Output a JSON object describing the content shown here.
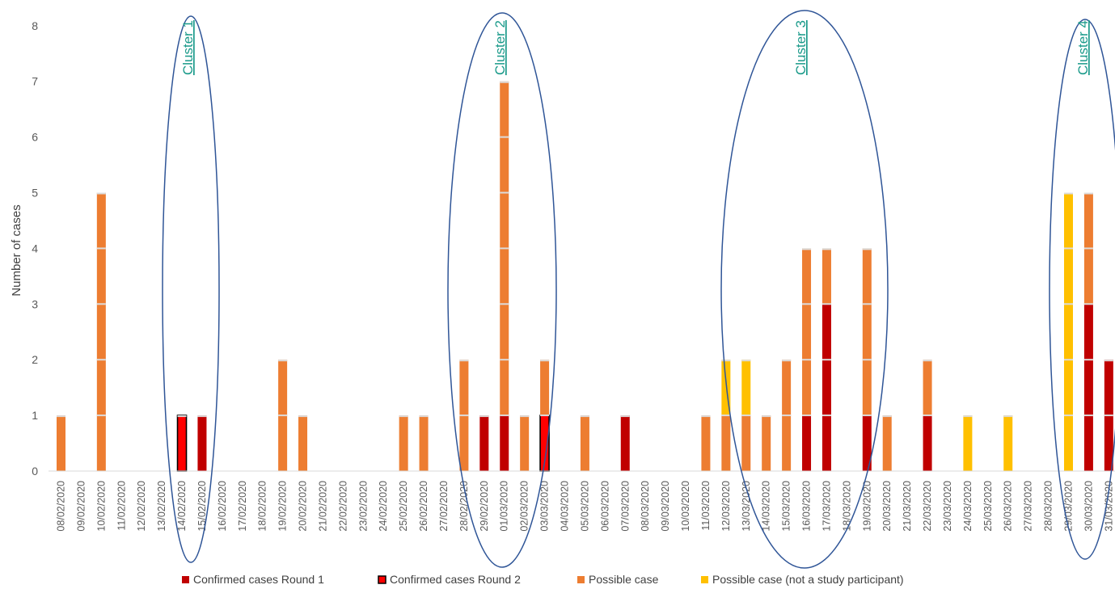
{
  "chart_data": {
    "type": "bar",
    "stacked": true,
    "ylabel": "Number  of cases",
    "xlabel": "",
    "ylim": [
      0,
      8
    ],
    "yticks": [
      0,
      1,
      2,
      3,
      4,
      5,
      6,
      7,
      8
    ],
    "grid": false,
    "legend_position": "bottom",
    "categories": [
      "08/02/2020",
      "09/02/2020",
      "10/02/2020",
      "11/02/2020",
      "12/02/2020",
      "13/02/2020",
      "14/02/2020",
      "15/02/2020",
      "16/02/2020",
      "17/02/2020",
      "18/02/2020",
      "19/02/2020",
      "20/02/2020",
      "21/02/2020",
      "22/02/2020",
      "23/02/2020",
      "24/02/2020",
      "25/02/2020",
      "26/02/2020",
      "27/02/2020",
      "28/02/2020",
      "29/02/2020",
      "01/03/2020",
      "02/03/2020",
      "03/03/2020",
      "04/03/2020",
      "05/03/2020",
      "06/03/2020",
      "07/03/2020",
      "08/03/2020",
      "09/03/2020",
      "10/03/2020",
      "11/03/2020",
      "12/03/2020",
      "13/03/2020",
      "14/03/2020",
      "15/03/2020",
      "16/03/2020",
      "17/03/2020",
      "18/03/2020",
      "19/03/2020",
      "20/03/2020",
      "21/03/2020",
      "22/03/2020",
      "23/03/2020",
      "24/03/2020",
      "25/03/2020",
      "26/03/2020",
      "27/03/2020",
      "28/03/2020",
      "29/03/2020",
      "30/03/2020",
      "31/03/2020"
    ],
    "series": [
      {
        "name": "Confirmed cases Round 1",
        "color": "#c00000",
        "values": [
          0,
          0,
          0,
          0,
          0,
          0,
          0,
          1,
          0,
          0,
          0,
          0,
          0,
          0,
          0,
          0,
          0,
          0,
          0,
          0,
          0,
          1,
          1,
          0,
          0,
          0,
          0,
          0,
          1,
          0,
          0,
          0,
          0,
          0,
          0,
          0,
          0,
          1,
          3,
          0,
          1,
          0,
          0,
          1,
          0,
          0,
          0,
          0,
          0,
          0,
          0,
          3,
          2
        ]
      },
      {
        "name": "Confirmed cases Round 2",
        "color": "#ff0000",
        "values": [
          0,
          0,
          0,
          0,
          0,
          0,
          1,
          0,
          0,
          0,
          0,
          0,
          0,
          0,
          0,
          0,
          0,
          0,
          0,
          0,
          0,
          0,
          0,
          0,
          1,
          0,
          0,
          0,
          0,
          0,
          0,
          0,
          0,
          0,
          0,
          0,
          0,
          0,
          0,
          0,
          0,
          0,
          0,
          0,
          0,
          0,
          0,
          0,
          0,
          0,
          0,
          0,
          0
        ]
      },
      {
        "name": "Possible case",
        "color": "#ed7d31",
        "values": [
          1,
          0,
          5,
          0,
          0,
          0,
          0,
          0,
          0,
          0,
          0,
          2,
          1,
          0,
          0,
          0,
          0,
          1,
          1,
          0,
          2,
          0,
          6,
          1,
          1,
          0,
          1,
          0,
          0,
          0,
          0,
          0,
          1,
          1,
          1,
          1,
          2,
          3,
          1,
          0,
          3,
          1,
          0,
          1,
          0,
          0,
          0,
          0,
          0,
          0,
          0,
          2,
          0
        ]
      },
      {
        "name": "Possible case (not a study participant)",
        "color": "#ffc000",
        "values": [
          0,
          0,
          0,
          0,
          0,
          0,
          0,
          0,
          0,
          0,
          0,
          0,
          0,
          0,
          0,
          0,
          0,
          0,
          0,
          0,
          0,
          0,
          0,
          0,
          0,
          0,
          0,
          0,
          0,
          0,
          0,
          0,
          0,
          1,
          1,
          0,
          0,
          0,
          0,
          0,
          0,
          0,
          0,
          0,
          0,
          1,
          0,
          1,
          0,
          0,
          5,
          0,
          0
        ]
      }
    ],
    "annotations": [
      {
        "label": "Cluster 1",
        "from": "14/02/2020",
        "to": "15/02/2020"
      },
      {
        "label": "Cluster 2",
        "from": "29/02/2020",
        "to": "03/03/2020"
      },
      {
        "label": "Cluster 3",
        "from": "12/03/2020",
        "to": "19/03/2020"
      },
      {
        "label": "Cluster 4",
        "from": "29/03/2020",
        "to": "31/03/2020"
      }
    ]
  }
}
